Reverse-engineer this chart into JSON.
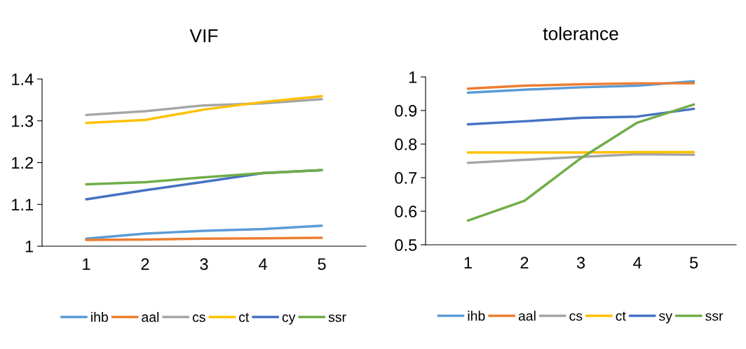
{
  "chart_data": [
    {
      "type": "line",
      "title": "VIF",
      "categories": [
        "1",
        "2",
        "3",
        "4",
        "5"
      ],
      "ylim": [
        1,
        1.4
      ],
      "yticks": [
        {
          "value": 1,
          "label": "1"
        },
        1.1,
        1.2,
        1.3,
        1.4
      ],
      "grid": false,
      "legend": "bottom",
      "marker": "none",
      "series": [
        {
          "name": "ihb",
          "color": "#5b9bd5",
          "values": [
            1.018,
            1.03,
            1.037,
            1.041,
            1.049
          ]
        },
        {
          "name": "aal",
          "color": "#ed7d31",
          "values": [
            1.015,
            1.016,
            1.018,
            1.019,
            1.02
          ]
        },
        {
          "name": "cs",
          "color": "#a5a5a5",
          "values": [
            1.314,
            1.323,
            1.337,
            1.342,
            1.352
          ]
        },
        {
          "name": "ct",
          "color": "#ffc000",
          "values": [
            1.295,
            1.302,
            1.327,
            1.345,
            1.359
          ]
        },
        {
          "name": "cy",
          "color": "#4472c4",
          "values": [
            1.112,
            1.134,
            1.154,
            1.175,
            1.182
          ]
        },
        {
          "name": "ssr",
          "color": "#70ad47",
          "values": [
            1.148,
            1.153,
            1.165,
            1.175,
            1.182
          ]
        }
      ]
    },
    {
      "type": "line",
      "title": "tolerance",
      "categories": [
        "1",
        "2",
        "3",
        "4",
        "5"
      ],
      "ylim": [
        0.5,
        1
      ],
      "yticks": [
        0.5,
        0.6,
        0.7,
        0.8,
        0.9,
        {
          "value": 1,
          "label": "1"
        }
      ],
      "grid": false,
      "legend": "bottom",
      "marker": "none",
      "series": [
        {
          "name": "ihb",
          "color": "#5b9bd5",
          "values": [
            0.953,
            0.962,
            0.969,
            0.974,
            0.987
          ]
        },
        {
          "name": "aal",
          "color": "#ed7d31",
          "values": [
            0.965,
            0.974,
            0.978,
            0.981,
            0.981
          ]
        },
        {
          "name": "cs",
          "color": "#a5a5a5",
          "values": [
            0.744,
            0.753,
            0.762,
            0.77,
            0.768
          ]
        },
        {
          "name": "ct",
          "color": "#ffc000",
          "values": [
            0.775,
            0.775,
            0.775,
            0.776,
            0.776
          ]
        },
        {
          "name": "sy",
          "color": "#4472c4",
          "values": [
            0.859,
            0.868,
            0.878,
            0.882,
            0.905
          ]
        },
        {
          "name": "ssr",
          "color": "#70ad47",
          "values": [
            0.572,
            0.631,
            0.758,
            0.864,
            0.918
          ]
        }
      ]
    }
  ]
}
